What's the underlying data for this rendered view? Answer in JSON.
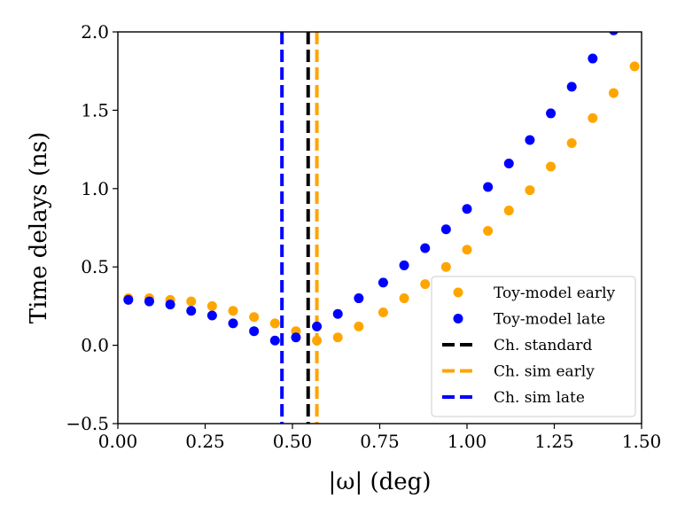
{
  "chart_data": {
    "type": "scatter",
    "xlabel": "|ω| (deg)",
    "ylabel": "Time delays (ns)",
    "xlim": [
      0.0,
      1.5
    ],
    "ylim": [
      -0.5,
      2.0
    ],
    "xticks": [
      0.0,
      0.25,
      0.5,
      0.75,
      1.0,
      1.25,
      1.5
    ],
    "xtick_labels": [
      "0.00",
      "0.25",
      "0.50",
      "0.75",
      "1.00",
      "1.25",
      "1.50"
    ],
    "yticks": [
      -0.5,
      0.0,
      0.5,
      1.0,
      1.5,
      2.0
    ],
    "ytick_labels": [
      "−0.5",
      "0.0",
      "0.5",
      "1.0",
      "1.5",
      "2.0"
    ],
    "legend_position": "lower-right",
    "series": [
      {
        "name": "Toy-model early",
        "kind": "scatter",
        "color": "#FFA500",
        "x": [
          0.03,
          0.09,
          0.15,
          0.21,
          0.27,
          0.33,
          0.39,
          0.45,
          0.51,
          0.57,
          0.63,
          0.69,
          0.76,
          0.82,
          0.88,
          0.94,
          1.0,
          1.06,
          1.12,
          1.18,
          1.24,
          1.3,
          1.36,
          1.42,
          1.48
        ],
        "y": [
          0.3,
          0.3,
          0.29,
          0.28,
          0.25,
          0.22,
          0.18,
          0.14,
          0.09,
          0.03,
          0.05,
          0.12,
          0.21,
          0.3,
          0.39,
          0.5,
          0.61,
          0.73,
          0.86,
          0.99,
          1.14,
          1.29,
          1.45,
          1.61,
          1.78
        ]
      },
      {
        "name": "Toy-model late",
        "kind": "scatter",
        "color": "#0000FF",
        "x": [
          0.03,
          0.09,
          0.15,
          0.21,
          0.27,
          0.33,
          0.39,
          0.45,
          0.51,
          0.57,
          0.63,
          0.69,
          0.76,
          0.82,
          0.88,
          0.94,
          1.0,
          1.06,
          1.12,
          1.18,
          1.24,
          1.3,
          1.36,
          1.42
        ],
        "y": [
          0.29,
          0.28,
          0.26,
          0.22,
          0.19,
          0.14,
          0.09,
          0.03,
          0.05,
          0.12,
          0.2,
          0.3,
          0.4,
          0.51,
          0.62,
          0.74,
          0.87,
          1.01,
          1.16,
          1.31,
          1.48,
          1.65,
          1.83,
          2.01
        ]
      },
      {
        "name": "Ch. standard",
        "kind": "vline",
        "color": "#000000",
        "x": 0.545
      },
      {
        "name": "Ch. sim early",
        "kind": "vline",
        "color": "#FFA500",
        "x": 0.57
      },
      {
        "name": "Ch. sim late",
        "kind": "vline",
        "color": "#0000FF",
        "x": 0.47
      }
    ]
  }
}
